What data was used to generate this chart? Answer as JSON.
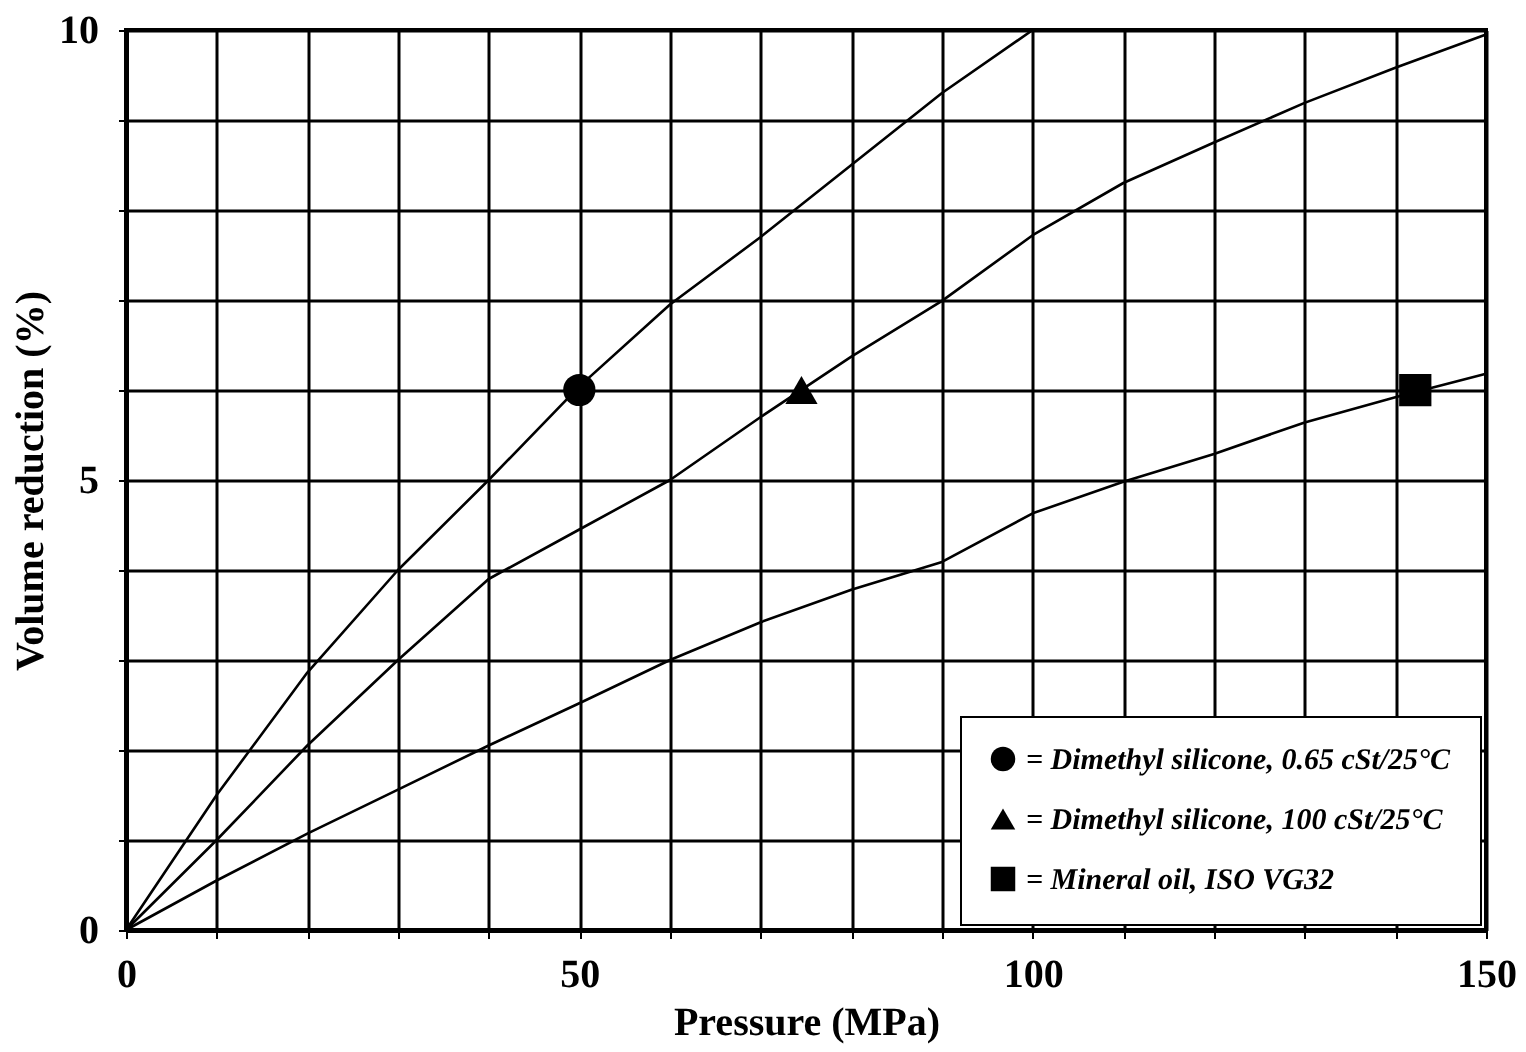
{
  "chart_data": {
    "type": "line",
    "xlabel": "Pressure (MPa)",
    "ylabel": "Volume reduction (%)",
    "xlim": [
      0,
      150
    ],
    "ylim": [
      0,
      10
    ],
    "xticks": [
      0,
      {
        "value": 10,
        "label": null
      },
      {
        "value": 20,
        "label": null
      },
      {
        "value": 30,
        "label": null
      },
      {
        "value": 40,
        "label": null
      },
      50,
      {
        "value": 60,
        "label": null
      },
      {
        "value": 70,
        "label": null
      },
      {
        "value": 80,
        "label": null
      },
      {
        "value": 90,
        "label": null
      },
      100,
      {
        "value": 110,
        "label": null
      },
      {
        "value": 120,
        "label": null
      },
      {
        "value": 130,
        "label": null
      },
      {
        "value": 140,
        "label": null
      },
      150
    ],
    "yticks": [
      0,
      {
        "value": 1,
        "label": null
      },
      {
        "value": 2,
        "label": null
      },
      {
        "value": 3,
        "label": null
      },
      {
        "value": 4,
        "label": null
      },
      5,
      {
        "value": 6,
        "label": null
      },
      {
        "value": 7,
        "label": null
      },
      {
        "value": 8,
        "label": null
      },
      {
        "value": 9,
        "label": null
      },
      10
    ],
    "grid": true,
    "legend": "bottom right",
    "line_style": "solid",
    "series": [
      {
        "color": "#000000",
        "marker": "none",
        "x": [
          0,
          10,
          20,
          30,
          40,
          50,
          60,
          70,
          80,
          90,
          100
        ],
        "values": [
          0,
          1.5,
          2.86,
          4.0,
          5.0,
          6.04,
          6.95,
          7.7,
          8.5,
          9.3,
          10
        ]
      },
      {
        "color": "#000000",
        "marker": "none",
        "x": [
          0,
          10,
          20,
          30,
          40,
          50,
          60,
          70,
          80,
          90,
          100,
          110,
          120,
          130,
          140,
          150
        ],
        "values": [
          0,
          1.0,
          2.05,
          3.0,
          3.9,
          4.45,
          5.0,
          5.7,
          6.37,
          6.99,
          7.72,
          8.3,
          8.75,
          9.19,
          9.58,
          9.95
        ]
      },
      {
        "color": "#000000",
        "marker": "none",
        "x": [
          0,
          10,
          20,
          30,
          40,
          50,
          60,
          70,
          80,
          90,
          100,
          110,
          120,
          130,
          140,
          150
        ],
        "values": [
          0,
          0.55,
          1.07,
          1.56,
          2.05,
          2.52,
          3.0,
          3.42,
          3.78,
          4.09,
          4.63,
          4.98,
          5.29,
          5.64,
          5.92,
          6.18
        ]
      },
      {
        "type": "scatter",
        "name": "= Dimethyl silicone, 0.65 cSt/25°C",
        "color": "#000000",
        "marker": "circle",
        "x": [
          50
        ],
        "values": [
          6
        ]
      },
      {
        "type": "scatter",
        "name": "= Dimethyl silicone, 100 cSt/25°C",
        "color": "#000000",
        "marker": "triangle",
        "x": [
          74.5
        ],
        "values": [
          6
        ]
      },
      {
        "type": "scatter",
        "name": "= Mineral oil, ISO VG32",
        "color": "#000000",
        "marker": "square",
        "x": [
          142.2
        ],
        "values": [
          6
        ]
      }
    ]
  }
}
